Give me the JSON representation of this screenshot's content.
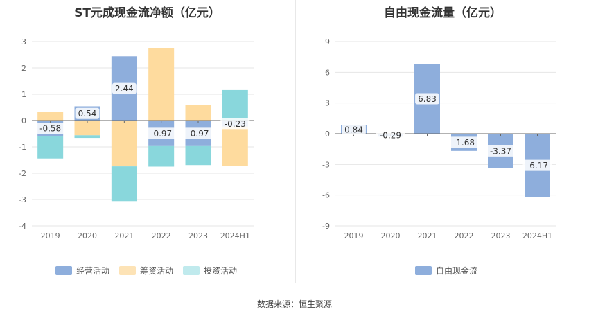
{
  "source_text": "数据来源：恒生聚源",
  "chart_data": [
    {
      "type": "bar",
      "stacked": true,
      "title": "ST元成现金流净额（亿元）",
      "categories": [
        "2019",
        "2020",
        "2021",
        "2022",
        "2023",
        "2024H1"
      ],
      "ylim": [
        -4,
        3
      ],
      "yticks": [
        "3",
        "2",
        "1",
        "0",
        "-1",
        "-2",
        "-3",
        "-4"
      ],
      "ytick_values": [
        3,
        2,
        1,
        0,
        -1,
        -2,
        -3,
        -4
      ],
      "series": [
        {
          "name": "经营活动",
          "color": "#8eaedc",
          "values": [
            -0.58,
            0.54,
            2.44,
            -0.97,
            -0.97,
            -0.23
          ],
          "labels": [
            "-0.58",
            "0.54",
            "2.44",
            "-0.97",
            "-0.97",
            "-0.23"
          ]
        },
        {
          "name": "筹资活动",
          "color": "#fedb9e",
          "values": [
            0.32,
            -0.56,
            -1.74,
            2.74,
            0.6,
            -1.5
          ]
        },
        {
          "name": "投资活动",
          "color": "#89d7dc",
          "values": [
            -0.86,
            -0.1,
            -1.32,
            -0.78,
            -0.72,
            1.16
          ]
        }
      ],
      "legend_colors": [
        "#8eaedc",
        "#fde3b6",
        "#c0eaed"
      ]
    },
    {
      "type": "bar",
      "title": "自由现金流量（亿元）",
      "categories": [
        "2019",
        "2020",
        "2021",
        "2022",
        "2023",
        "2024H1"
      ],
      "ylim": [
        -9,
        9
      ],
      "yticks": [
        "9",
        "6",
        "3",
        "0",
        "-3",
        "-6",
        "-9"
      ],
      "ytick_values": [
        9,
        6,
        3,
        0,
        -3,
        -6,
        -9
      ],
      "series": [
        {
          "name": "自由现金流",
          "color": "#8eaedc",
          "values": [
            0.84,
            -0.29,
            6.83,
            -1.68,
            -3.37,
            -6.17
          ],
          "labels": [
            "0.84",
            "-0.29",
            "6.83",
            "-1.68",
            "-3.37",
            "-6.17"
          ]
        }
      ],
      "legend_colors": [
        "#8eaedc"
      ]
    }
  ]
}
